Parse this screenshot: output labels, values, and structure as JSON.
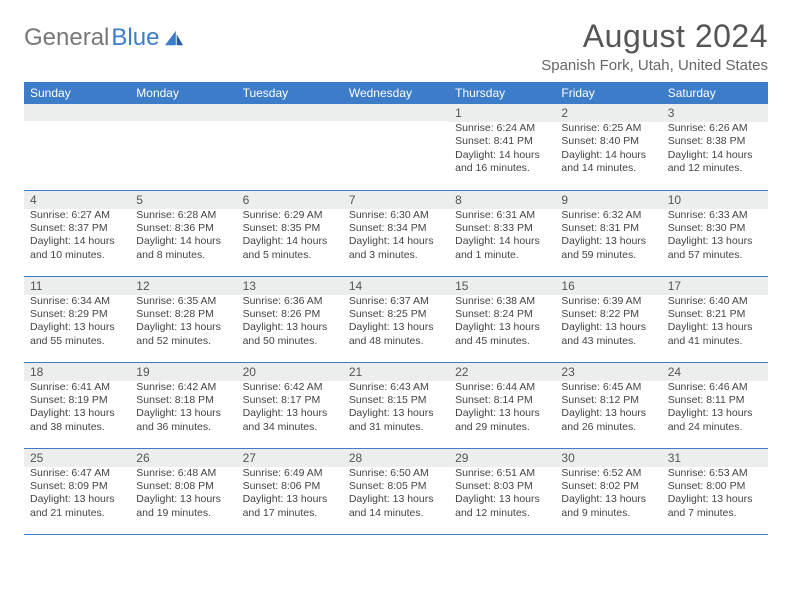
{
  "logo": {
    "text1": "General",
    "text2": "Blue"
  },
  "title": "August 2024",
  "location": "Spanish Fork, Utah, United States",
  "colors": {
    "accent": "#3d7cc9",
    "shade": "#eceded",
    "text": "#444444"
  },
  "dayHeaders": [
    "Sunday",
    "Monday",
    "Tuesday",
    "Wednesday",
    "Thursday",
    "Friday",
    "Saturday"
  ],
  "weeks": [
    [
      {
        "n": "",
        "sr": "",
        "ss": "",
        "d1": "",
        "d2": ""
      },
      {
        "n": "",
        "sr": "",
        "ss": "",
        "d1": "",
        "d2": ""
      },
      {
        "n": "",
        "sr": "",
        "ss": "",
        "d1": "",
        "d2": ""
      },
      {
        "n": "",
        "sr": "",
        "ss": "",
        "d1": "",
        "d2": ""
      },
      {
        "n": "1",
        "sr": "Sunrise: 6:24 AM",
        "ss": "Sunset: 8:41 PM",
        "d1": "Daylight: 14 hours",
        "d2": "and 16 minutes."
      },
      {
        "n": "2",
        "sr": "Sunrise: 6:25 AM",
        "ss": "Sunset: 8:40 PM",
        "d1": "Daylight: 14 hours",
        "d2": "and 14 minutes."
      },
      {
        "n": "3",
        "sr": "Sunrise: 6:26 AM",
        "ss": "Sunset: 8:38 PM",
        "d1": "Daylight: 14 hours",
        "d2": "and 12 minutes."
      }
    ],
    [
      {
        "n": "4",
        "sr": "Sunrise: 6:27 AM",
        "ss": "Sunset: 8:37 PM",
        "d1": "Daylight: 14 hours",
        "d2": "and 10 minutes."
      },
      {
        "n": "5",
        "sr": "Sunrise: 6:28 AM",
        "ss": "Sunset: 8:36 PM",
        "d1": "Daylight: 14 hours",
        "d2": "and 8 minutes."
      },
      {
        "n": "6",
        "sr": "Sunrise: 6:29 AM",
        "ss": "Sunset: 8:35 PM",
        "d1": "Daylight: 14 hours",
        "d2": "and 5 minutes."
      },
      {
        "n": "7",
        "sr": "Sunrise: 6:30 AM",
        "ss": "Sunset: 8:34 PM",
        "d1": "Daylight: 14 hours",
        "d2": "and 3 minutes."
      },
      {
        "n": "8",
        "sr": "Sunrise: 6:31 AM",
        "ss": "Sunset: 8:33 PM",
        "d1": "Daylight: 14 hours",
        "d2": "and 1 minute."
      },
      {
        "n": "9",
        "sr": "Sunrise: 6:32 AM",
        "ss": "Sunset: 8:31 PM",
        "d1": "Daylight: 13 hours",
        "d2": "and 59 minutes."
      },
      {
        "n": "10",
        "sr": "Sunrise: 6:33 AM",
        "ss": "Sunset: 8:30 PM",
        "d1": "Daylight: 13 hours",
        "d2": "and 57 minutes."
      }
    ],
    [
      {
        "n": "11",
        "sr": "Sunrise: 6:34 AM",
        "ss": "Sunset: 8:29 PM",
        "d1": "Daylight: 13 hours",
        "d2": "and 55 minutes."
      },
      {
        "n": "12",
        "sr": "Sunrise: 6:35 AM",
        "ss": "Sunset: 8:28 PM",
        "d1": "Daylight: 13 hours",
        "d2": "and 52 minutes."
      },
      {
        "n": "13",
        "sr": "Sunrise: 6:36 AM",
        "ss": "Sunset: 8:26 PM",
        "d1": "Daylight: 13 hours",
        "d2": "and 50 minutes."
      },
      {
        "n": "14",
        "sr": "Sunrise: 6:37 AM",
        "ss": "Sunset: 8:25 PM",
        "d1": "Daylight: 13 hours",
        "d2": "and 48 minutes."
      },
      {
        "n": "15",
        "sr": "Sunrise: 6:38 AM",
        "ss": "Sunset: 8:24 PM",
        "d1": "Daylight: 13 hours",
        "d2": "and 45 minutes."
      },
      {
        "n": "16",
        "sr": "Sunrise: 6:39 AM",
        "ss": "Sunset: 8:22 PM",
        "d1": "Daylight: 13 hours",
        "d2": "and 43 minutes."
      },
      {
        "n": "17",
        "sr": "Sunrise: 6:40 AM",
        "ss": "Sunset: 8:21 PM",
        "d1": "Daylight: 13 hours",
        "d2": "and 41 minutes."
      }
    ],
    [
      {
        "n": "18",
        "sr": "Sunrise: 6:41 AM",
        "ss": "Sunset: 8:19 PM",
        "d1": "Daylight: 13 hours",
        "d2": "and 38 minutes."
      },
      {
        "n": "19",
        "sr": "Sunrise: 6:42 AM",
        "ss": "Sunset: 8:18 PM",
        "d1": "Daylight: 13 hours",
        "d2": "and 36 minutes."
      },
      {
        "n": "20",
        "sr": "Sunrise: 6:42 AM",
        "ss": "Sunset: 8:17 PM",
        "d1": "Daylight: 13 hours",
        "d2": "and 34 minutes."
      },
      {
        "n": "21",
        "sr": "Sunrise: 6:43 AM",
        "ss": "Sunset: 8:15 PM",
        "d1": "Daylight: 13 hours",
        "d2": "and 31 minutes."
      },
      {
        "n": "22",
        "sr": "Sunrise: 6:44 AM",
        "ss": "Sunset: 8:14 PM",
        "d1": "Daylight: 13 hours",
        "d2": "and 29 minutes."
      },
      {
        "n": "23",
        "sr": "Sunrise: 6:45 AM",
        "ss": "Sunset: 8:12 PM",
        "d1": "Daylight: 13 hours",
        "d2": "and 26 minutes."
      },
      {
        "n": "24",
        "sr": "Sunrise: 6:46 AM",
        "ss": "Sunset: 8:11 PM",
        "d1": "Daylight: 13 hours",
        "d2": "and 24 minutes."
      }
    ],
    [
      {
        "n": "25",
        "sr": "Sunrise: 6:47 AM",
        "ss": "Sunset: 8:09 PM",
        "d1": "Daylight: 13 hours",
        "d2": "and 21 minutes."
      },
      {
        "n": "26",
        "sr": "Sunrise: 6:48 AM",
        "ss": "Sunset: 8:08 PM",
        "d1": "Daylight: 13 hours",
        "d2": "and 19 minutes."
      },
      {
        "n": "27",
        "sr": "Sunrise: 6:49 AM",
        "ss": "Sunset: 8:06 PM",
        "d1": "Daylight: 13 hours",
        "d2": "and 17 minutes."
      },
      {
        "n": "28",
        "sr": "Sunrise: 6:50 AM",
        "ss": "Sunset: 8:05 PM",
        "d1": "Daylight: 13 hours",
        "d2": "and 14 minutes."
      },
      {
        "n": "29",
        "sr": "Sunrise: 6:51 AM",
        "ss": "Sunset: 8:03 PM",
        "d1": "Daylight: 13 hours",
        "d2": "and 12 minutes."
      },
      {
        "n": "30",
        "sr": "Sunrise: 6:52 AM",
        "ss": "Sunset: 8:02 PM",
        "d1": "Daylight: 13 hours",
        "d2": "and 9 minutes."
      },
      {
        "n": "31",
        "sr": "Sunrise: 6:53 AM",
        "ss": "Sunset: 8:00 PM",
        "d1": "Daylight: 13 hours",
        "d2": "and 7 minutes."
      }
    ]
  ]
}
